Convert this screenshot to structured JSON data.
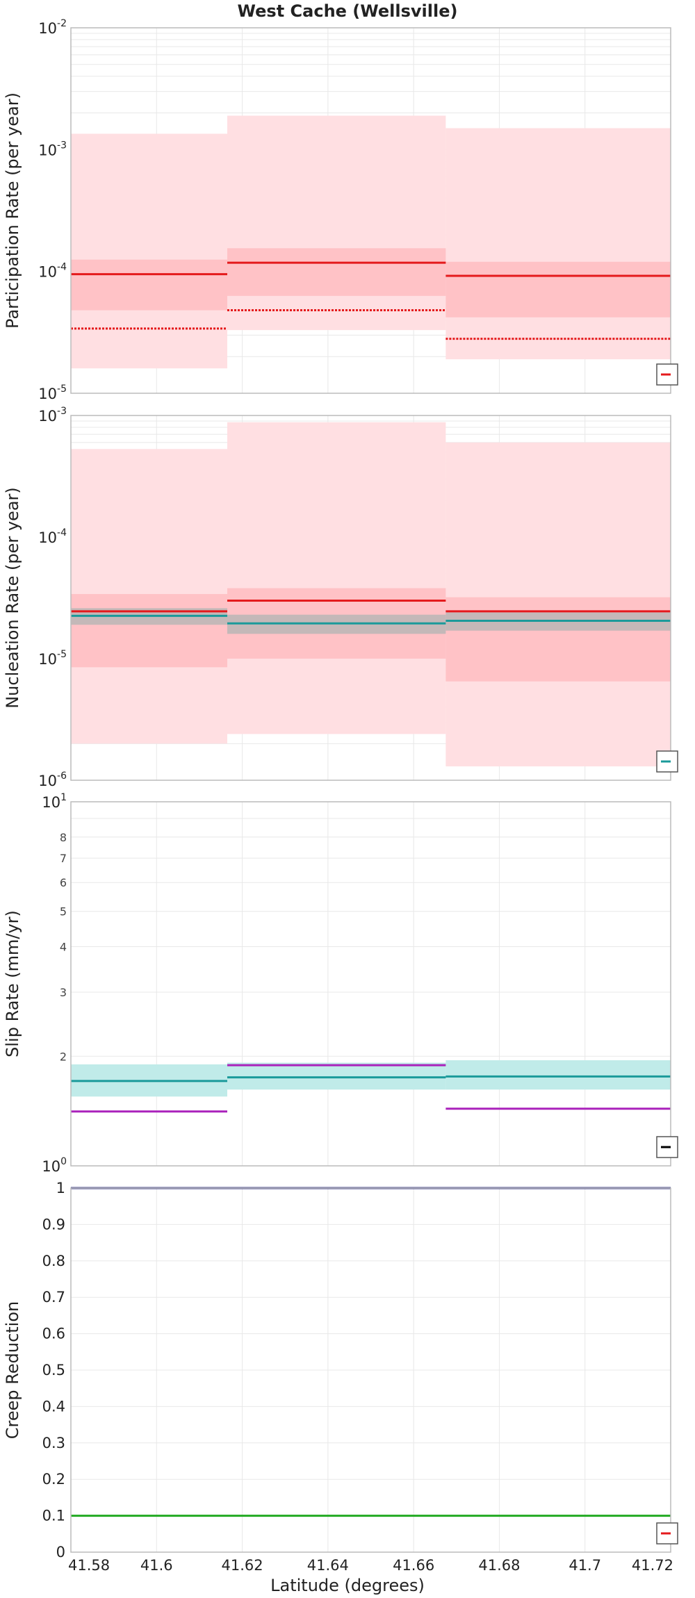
{
  "chart_title": "West Cache (Wellsville)",
  "xlabel": "Latitude (degrees)",
  "xlim": [
    41.58,
    41.72
  ],
  "x_ticks": [
    "41.58",
    "41.6",
    "41.62",
    "41.64",
    "41.66",
    "41.68",
    "41.7",
    "41.72"
  ],
  "colors": {
    "red": "#e41a1c",
    "red_band_light": "#ffdfe2",
    "red_band_dark": "#ffc2c6",
    "gray_band": "#c4b8b8",
    "teal": "#1a9a9a",
    "teal_band": "#c0ebe9",
    "purple": "#aa22bb",
    "navy": "#3a3a8a",
    "green": "#22aa22",
    "grid": "#e8e8e8",
    "frame": "#bbbbbb"
  },
  "chart_data": [
    {
      "type": "line",
      "id": "participation",
      "ylabel": "Participation Rate (per year)",
      "yscale": "log",
      "ylim": [
        1e-05,
        0.01
      ],
      "y_ticks": [
        {
          "base": "10",
          "exp": "-5"
        },
        {
          "base": "10",
          "exp": "-4"
        },
        {
          "base": "10",
          "exp": "-3"
        },
        {
          "base": "10",
          "exp": "-2"
        }
      ],
      "bands": [
        {
          "color": "red_band_light",
          "segments": [
            {
              "x0": 41.58,
              "x1": 41.6165,
              "low": 1.6e-05,
              "high": 0.00135
            },
            {
              "x0": 41.6165,
              "x1": 41.6675,
              "low": 3.3e-05,
              "high": 0.0019
            },
            {
              "x0": 41.6675,
              "x1": 41.72,
              "low": 1.9e-05,
              "high": 0.0015
            }
          ]
        },
        {
          "color": "red_band_dark",
          "segments": [
            {
              "x0": 41.58,
              "x1": 41.6165,
              "low": 4.8e-05,
              "high": 0.000125
            },
            {
              "x0": 41.6165,
              "x1": 41.6675,
              "low": 6.3e-05,
              "high": 0.000155
            },
            {
              "x0": 41.6675,
              "x1": 41.72,
              "low": 4.2e-05,
              "high": 0.00012
            }
          ]
        }
      ],
      "lines": [
        {
          "color": "red",
          "dash": "",
          "segments": [
            {
              "x0": 41.58,
              "x1": 41.6165,
              "y": 9.5e-05
            },
            {
              "x0": 41.6165,
              "x1": 41.6675,
              "y": 0.000118
            },
            {
              "x0": 41.6675,
              "x1": 41.72,
              "y": 9.2e-05
            }
          ]
        },
        {
          "color": "red",
          "dash": "3,2",
          "segments": [
            {
              "x0": 41.58,
              "x1": 41.6165,
              "y": 3.4e-05
            },
            {
              "x0": 41.6165,
              "x1": 41.6675,
              "y": 4.8e-05
            },
            {
              "x0": 41.6675,
              "x1": 41.72,
              "y": 2.8e-05
            }
          ]
        }
      ],
      "legend_color": "red",
      "legend_position": "bottom-right"
    },
    {
      "type": "line",
      "id": "nucleation",
      "ylabel": "Nucleation Rate (per year)",
      "yscale": "log",
      "ylim": [
        1e-06,
        0.001
      ],
      "y_ticks": [
        {
          "base": "10",
          "exp": "-6"
        },
        {
          "base": "10",
          "exp": "-5"
        },
        {
          "base": "10",
          "exp": "-4"
        },
        {
          "base": "10",
          "exp": "-3"
        }
      ],
      "bands": [
        {
          "color": "red_band_light",
          "segments": [
            {
              "x0": 41.58,
              "x1": 41.6165,
              "low": 2e-06,
              "high": 0.00053
            },
            {
              "x0": 41.6165,
              "x1": 41.6675,
              "low": 2.4e-06,
              "high": 0.00088
            },
            {
              "x0": 41.6675,
              "x1": 41.72,
              "low": 1.3e-06,
              "high": 0.0006
            }
          ]
        },
        {
          "color": "red_band_dark",
          "segments": [
            {
              "x0": 41.58,
              "x1": 41.6165,
              "low": 8.5e-06,
              "high": 3.4e-05
            },
            {
              "x0": 41.6165,
              "x1": 41.6675,
              "low": 1e-05,
              "high": 3.8e-05
            },
            {
              "x0": 41.6675,
              "x1": 41.72,
              "low": 6.5e-06,
              "high": 3.2e-05
            }
          ]
        },
        {
          "color": "gray_band",
          "segments": [
            {
              "x0": 41.58,
              "x1": 41.6165,
              "low": 1.9e-05,
              "high": 2.6e-05
            },
            {
              "x0": 41.6165,
              "x1": 41.6675,
              "low": 1.6e-05,
              "high": 2.3e-05
            },
            {
              "x0": 41.6675,
              "x1": 41.72,
              "low": 1.7e-05,
              "high": 2.4e-05
            }
          ]
        }
      ],
      "lines": [
        {
          "color": "red",
          "dash": "",
          "segments": [
            {
              "x0": 41.58,
              "x1": 41.6165,
              "y": 2.45e-05
            },
            {
              "x0": 41.6165,
              "x1": 41.6675,
              "y": 3e-05
            },
            {
              "x0": 41.6675,
              "x1": 41.72,
              "y": 2.45e-05
            }
          ]
        },
        {
          "color": "teal",
          "dash": "",
          "segments": [
            {
              "x0": 41.58,
              "x1": 41.6165,
              "y": 2.25e-05
            },
            {
              "x0": 41.6165,
              "x1": 41.6675,
              "y": 1.95e-05
            },
            {
              "x0": 41.6675,
              "x1": 41.72,
              "y": 2.05e-05
            }
          ]
        }
      ],
      "legend_color": "teal",
      "legend_position": "bottom-right"
    },
    {
      "type": "line",
      "id": "slip",
      "ylabel": "Slip Rate (mm/yr)",
      "yscale": "log",
      "ylim": [
        1,
        10
      ],
      "y_ticks": [
        {
          "base": "10",
          "exp": "0"
        },
        {
          "base": "10",
          "exp": "1"
        }
      ],
      "y_tick_values": [
        1,
        10
      ],
      "y_minor_labels": [
        {
          "value": 2,
          "label": "2"
        },
        {
          "value": 3,
          "label": "3"
        },
        {
          "value": 4,
          "label": "4"
        },
        {
          "value": 5,
          "label": "5"
        },
        {
          "value": 6,
          "label": "6"
        },
        {
          "value": 7,
          "label": "7"
        },
        {
          "value": 8,
          "label": "8"
        }
      ],
      "bands": [
        {
          "color": "teal_band",
          "segments": [
            {
              "x0": 41.58,
              "x1": 41.6165,
              "low": 1.55,
              "high": 1.9
            },
            {
              "x0": 41.6165,
              "x1": 41.6675,
              "low": 1.62,
              "high": 1.92
            },
            {
              "x0": 41.6675,
              "x1": 41.72,
              "low": 1.62,
              "high": 1.95
            }
          ]
        }
      ],
      "lines": [
        {
          "color": "teal",
          "dash": "",
          "segments": [
            {
              "x0": 41.58,
              "x1": 41.6165,
              "y": 1.71
            },
            {
              "x0": 41.6165,
              "x1": 41.6675,
              "y": 1.75
            },
            {
              "x0": 41.6675,
              "x1": 41.72,
              "y": 1.76
            }
          ]
        },
        {
          "color": "purple",
          "dash": "",
          "segments": [
            {
              "x0": 41.58,
              "x1": 41.6165,
              "y": 1.41
            },
            {
              "x0": 41.6165,
              "x1": 41.6675,
              "y": 1.89
            },
            {
              "x0": 41.6675,
              "x1": 41.72,
              "y": 1.435
            }
          ]
        }
      ],
      "legend_color": "black",
      "legend_position": "bottom-right"
    },
    {
      "type": "line",
      "id": "creep",
      "ylabel": "Creep Reduction",
      "yscale": "linear",
      "ylim": [
        0,
        1
      ],
      "y_ticks": [
        "0",
        "0.1",
        "0.2",
        "0.3",
        "0.4",
        "0.5",
        "0.6",
        "0.7",
        "0.8",
        "0.9",
        "1"
      ],
      "bands": [],
      "lines": [
        {
          "color": "navy",
          "dash": "",
          "segments": [
            {
              "x0": 41.58,
              "x1": 41.72,
              "y": 1.0
            }
          ]
        },
        {
          "color": "green",
          "dash": "",
          "segments": [
            {
              "x0": 41.58,
              "x1": 41.72,
              "y": 0.1
            }
          ]
        }
      ],
      "legend_color": "red",
      "legend_position": "bottom-right"
    }
  ]
}
